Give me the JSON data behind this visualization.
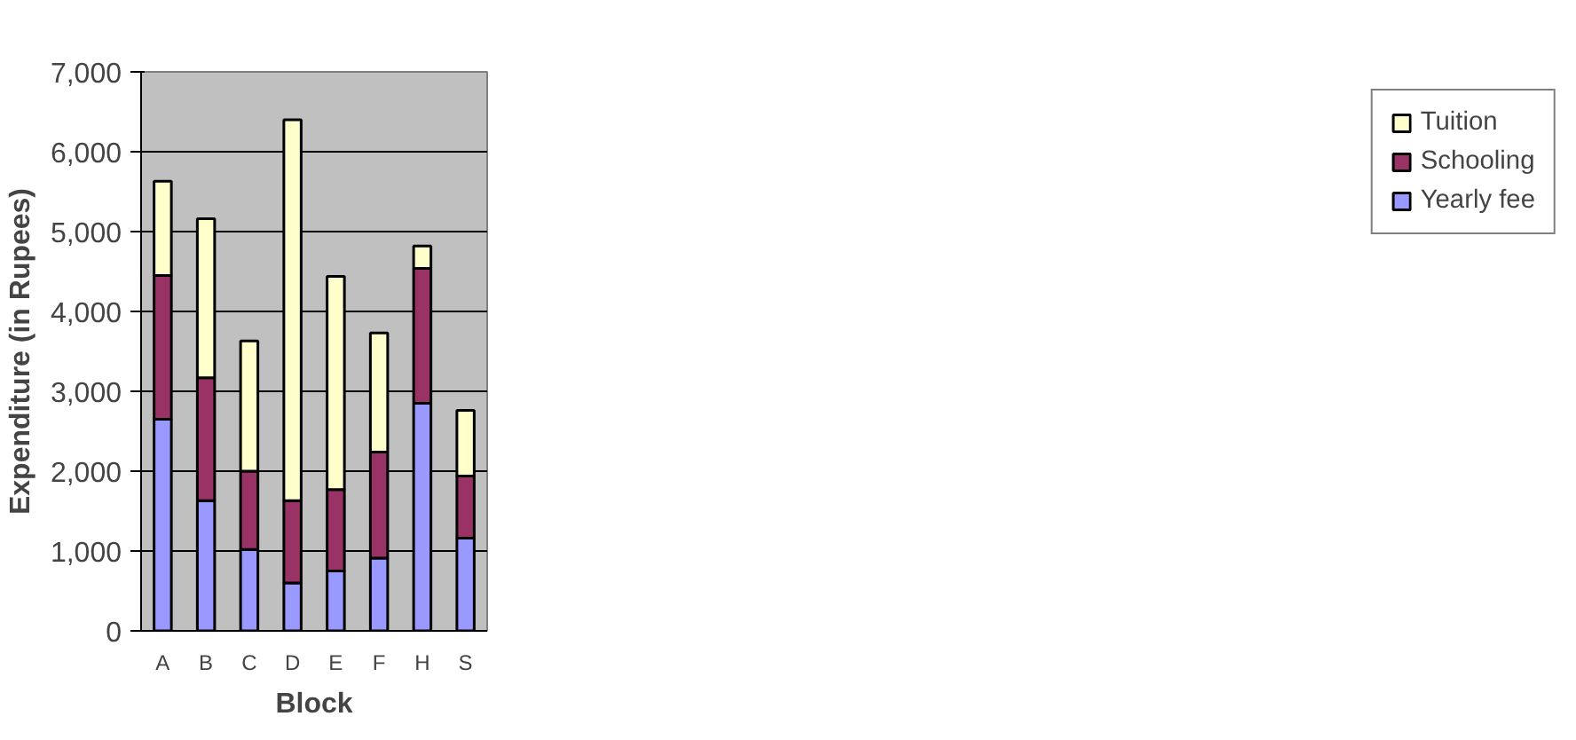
{
  "chart_data": {
    "type": "bar",
    "stacked": true,
    "xlabel": "Block",
    "ylabel": "Expenditure (in Rupees)",
    "categories": [
      "A",
      "B",
      "C",
      "D",
      "E",
      "F",
      "H",
      "S"
    ],
    "series": [
      {
        "name": "Yearly fee",
        "color": "#9999ff",
        "values": [
          2650,
          1630,
          1020,
          600,
          750,
          910,
          2850,
          1160
        ]
      },
      {
        "name": "Schooling",
        "color": "#993366",
        "values": [
          1800,
          1540,
          980,
          1030,
          1020,
          1330,
          1690,
          780
        ]
      },
      {
        "name": "Tuition",
        "color": "#ffffcc",
        "values": [
          1180,
          1990,
          1630,
          4770,
          2670,
          1490,
          280,
          820
        ]
      }
    ],
    "ylim": [
      0,
      7000
    ],
    "yticks": [
      {
        "value": 0,
        "label": "0"
      },
      {
        "value": 1000,
        "label": "1,000"
      },
      {
        "value": 2000,
        "label": "2,000"
      },
      {
        "value": 3000,
        "label": "3,000"
      },
      {
        "value": 4000,
        "label": "4,000"
      },
      {
        "value": 5000,
        "label": "5,000"
      },
      {
        "value": 6000,
        "label": "6,000"
      },
      {
        "value": 7000,
        "label": "7,000"
      }
    ],
    "grid": "y",
    "legend": "right"
  }
}
